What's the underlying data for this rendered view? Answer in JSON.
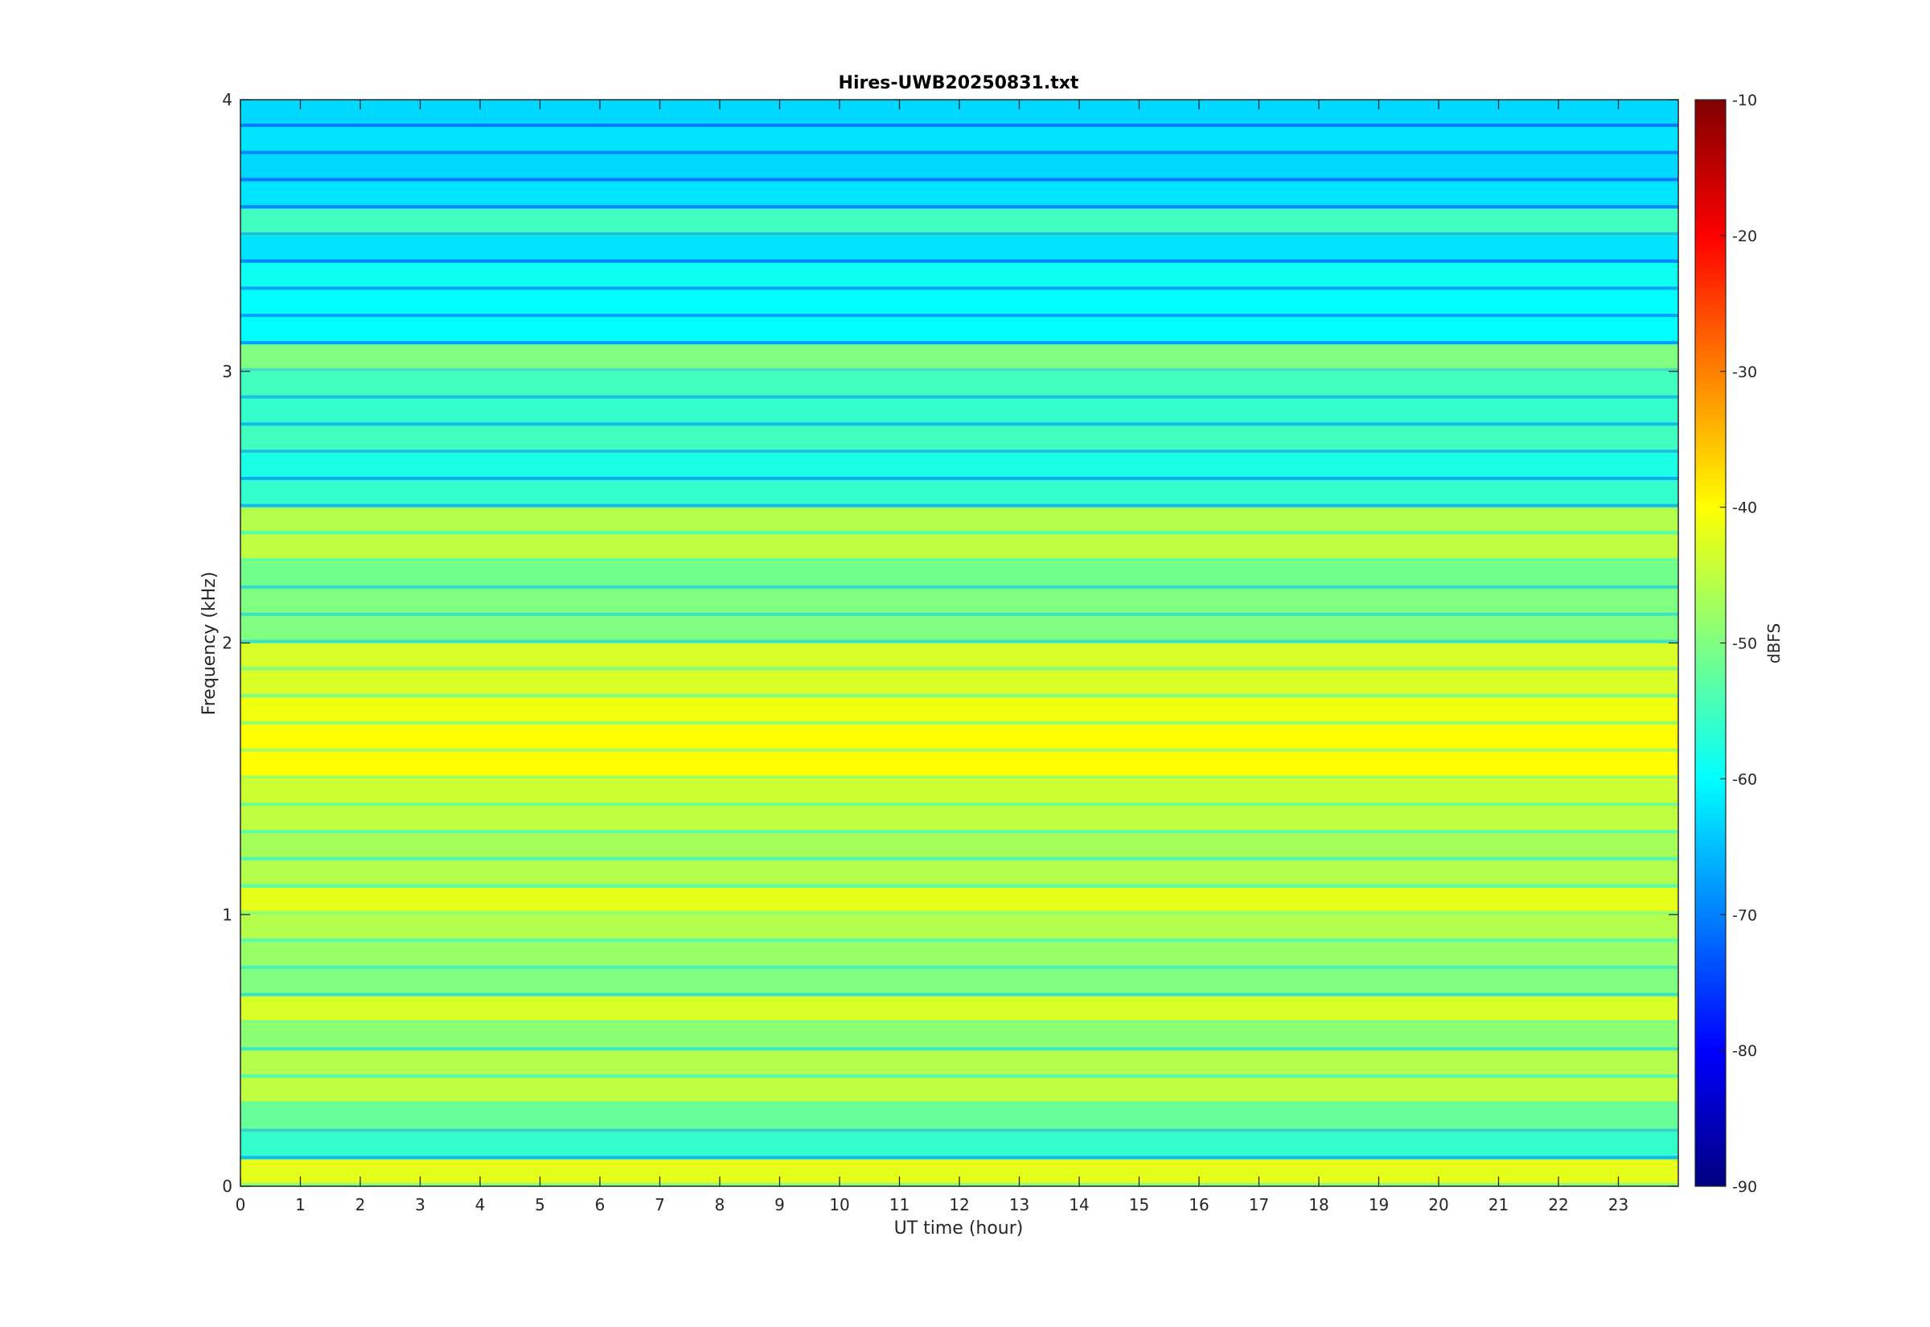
{
  "chart_data": {
    "type": "heatmap",
    "title": "Hires-UWB20250831.txt",
    "xlabel": "UT time (hour)",
    "ylabel": "Frequency (kHz)",
    "colorbar_label": "dBFS",
    "xlim": [
      0,
      24
    ],
    "ylim": [
      0,
      4
    ],
    "clim": [
      -90,
      -10
    ],
    "colormap": "jet",
    "x_ticks": [
      "0",
      "1",
      "2",
      "3",
      "4",
      "5",
      "6",
      "7",
      "8",
      "9",
      "10",
      "11",
      "12",
      "13",
      "14",
      "15",
      "16",
      "17",
      "18",
      "19",
      "20",
      "21",
      "22",
      "23"
    ],
    "y_ticks": [
      "0",
      "1",
      "2",
      "3",
      "4"
    ],
    "colorbar_ticks": [
      "-10",
      "-20",
      "-30",
      "-40",
      "-50",
      "-60",
      "-70",
      "-80",
      "-90"
    ],
    "grid": false,
    "bands": [
      {
        "f": 0.05,
        "level": -42
      },
      {
        "f": 0.15,
        "level": -56
      },
      {
        "f": 0.25,
        "level": -52
      },
      {
        "f": 0.35,
        "level": -45
      },
      {
        "f": 0.45,
        "level": -46
      },
      {
        "f": 0.55,
        "level": -49
      },
      {
        "f": 0.65,
        "level": -43
      },
      {
        "f": 0.75,
        "level": -50
      },
      {
        "f": 0.85,
        "level": -48
      },
      {
        "f": 0.95,
        "level": -46
      },
      {
        "f": 1.05,
        "level": -42
      },
      {
        "f": 1.15,
        "level": -46
      },
      {
        "f": 1.25,
        "level": -47
      },
      {
        "f": 1.35,
        "level": -45
      },
      {
        "f": 1.45,
        "level": -44
      },
      {
        "f": 1.55,
        "level": -40
      },
      {
        "f": 1.65,
        "level": -40
      },
      {
        "f": 1.75,
        "level": -41
      },
      {
        "f": 1.85,
        "level": -43
      },
      {
        "f": 1.95,
        "level": -43
      },
      {
        "f": 2.05,
        "level": -50
      },
      {
        "f": 2.15,
        "level": -50
      },
      {
        "f": 2.25,
        "level": -51
      },
      {
        "f": 2.35,
        "level": -45
      },
      {
        "f": 2.45,
        "level": -46
      },
      {
        "f": 2.55,
        "level": -56
      },
      {
        "f": 2.65,
        "level": -58
      },
      {
        "f": 2.75,
        "level": -55
      },
      {
        "f": 2.85,
        "level": -56
      },
      {
        "f": 2.95,
        "level": -55
      },
      {
        "f": 3.05,
        "level": -50
      },
      {
        "f": 3.15,
        "level": -60
      },
      {
        "f": 3.25,
        "level": -60
      },
      {
        "f": 3.35,
        "level": -59
      },
      {
        "f": 3.45,
        "level": -62
      },
      {
        "f": 3.55,
        "level": -55
      },
      {
        "f": 3.65,
        "level": -62
      },
      {
        "f": 3.75,
        "level": -63
      },
      {
        "f": 3.85,
        "level": -62
      },
      {
        "f": 3.95,
        "level": -63
      }
    ]
  }
}
